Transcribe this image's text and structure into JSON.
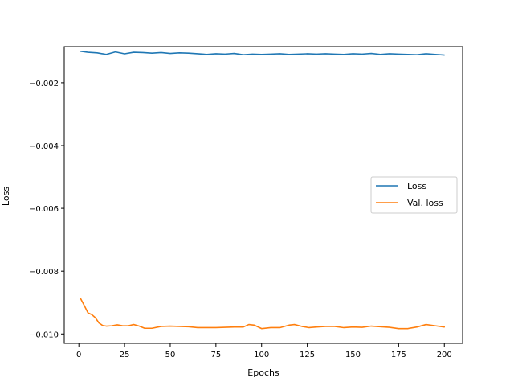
{
  "chart_data": {
    "type": "line",
    "title": "",
    "xlabel": "Epochs",
    "ylabel": "Loss",
    "xlim": [
      -8,
      210
    ],
    "ylim": [
      -0.0103,
      -0.00085
    ],
    "xticks": [
      0,
      25,
      50,
      75,
      100,
      125,
      150,
      175,
      200
    ],
    "xtick_labels": [
      "0",
      "25",
      "50",
      "75",
      "100",
      "125",
      "150",
      "175",
      "200"
    ],
    "yticks": [
      -0.002,
      -0.004,
      -0.006,
      -0.008,
      -0.01
    ],
    "ytick_labels": [
      "−0.002",
      "−0.004",
      "−0.006",
      "−0.008",
      "−0.010"
    ],
    "legend_position": "center-right",
    "grid": false,
    "series": [
      {
        "name": "Loss",
        "color": "#1f77b4",
        "x": [
          1,
          5,
          10,
          15,
          20,
          25,
          30,
          35,
          40,
          45,
          50,
          55,
          60,
          65,
          70,
          75,
          80,
          85,
          90,
          95,
          100,
          105,
          110,
          115,
          120,
          125,
          130,
          135,
          140,
          145,
          150,
          155,
          160,
          165,
          170,
          175,
          180,
          185,
          190,
          195,
          200
        ],
        "y": [
          -0.001,
          -0.00103,
          -0.00105,
          -0.0011,
          -0.00102,
          -0.00108,
          -0.00103,
          -0.00104,
          -0.00106,
          -0.00104,
          -0.00107,
          -0.00105,
          -0.00106,
          -0.00108,
          -0.0011,
          -0.00108,
          -0.00109,
          -0.00107,
          -0.00111,
          -0.00109,
          -0.0011,
          -0.00109,
          -0.00108,
          -0.0011,
          -0.00109,
          -0.00108,
          -0.00109,
          -0.00108,
          -0.00109,
          -0.0011,
          -0.00108,
          -0.00109,
          -0.00107,
          -0.0011,
          -0.00108,
          -0.00109,
          -0.0011,
          -0.00111,
          -0.00108,
          -0.0011,
          -0.00112
        ]
      },
      {
        "name": "Val. loss",
        "color": "#ff7f0e",
        "x": [
          1,
          3,
          5,
          7,
          9,
          11,
          13,
          15,
          18,
          21,
          24,
          27,
          30,
          33,
          36,
          40,
          45,
          50,
          55,
          60,
          65,
          70,
          75,
          80,
          85,
          90,
          93,
          96,
          100,
          105,
          110,
          115,
          118,
          122,
          126,
          130,
          135,
          140,
          145,
          150,
          155,
          160,
          165,
          170,
          175,
          180,
          185,
          190,
          195,
          200
        ],
        "y": [
          -0.00888,
          -0.0091,
          -0.00933,
          -0.00938,
          -0.00948,
          -0.00965,
          -0.00973,
          -0.00975,
          -0.00974,
          -0.00971,
          -0.00974,
          -0.00974,
          -0.0097,
          -0.00975,
          -0.00982,
          -0.00982,
          -0.00976,
          -0.00975,
          -0.00976,
          -0.00977,
          -0.0098,
          -0.0098,
          -0.0098,
          -0.00979,
          -0.00978,
          -0.00978,
          -0.0097,
          -0.00972,
          -0.00983,
          -0.0098,
          -0.0098,
          -0.00972,
          -0.0097,
          -0.00976,
          -0.0098,
          -0.00978,
          -0.00976,
          -0.00976,
          -0.0098,
          -0.00978,
          -0.00979,
          -0.00975,
          -0.00977,
          -0.00979,
          -0.00983,
          -0.00983,
          -0.00978,
          -0.0097,
          -0.00974,
          -0.00978
        ]
      }
    ]
  }
}
